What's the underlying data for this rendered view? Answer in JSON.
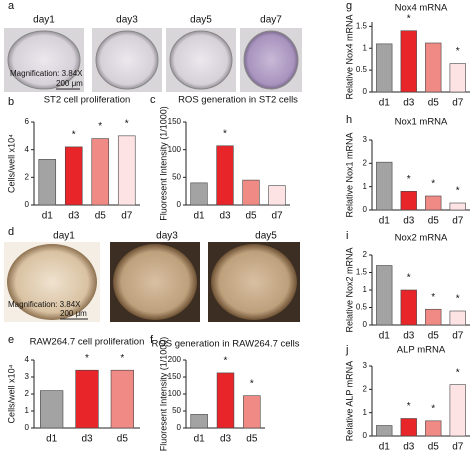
{
  "panel_labels": [
    "a",
    "b",
    "c",
    "d",
    "e",
    "f",
    "g",
    "h",
    "i",
    "j"
  ],
  "photos_a": {
    "labels": [
      "day1",
      "day3",
      "day5",
      "day7"
    ],
    "magnification": "Magnification: 3.84X",
    "scale": "200 μm"
  },
  "photos_d": {
    "labels": [
      "day1",
      "day3",
      "day5"
    ],
    "magnification": "Magnification: 3.84X",
    "scale": "200 μm"
  },
  "chart_data": [
    {
      "type": "bar",
      "title": "ST2 cell proliferation",
      "ylabel": "Cells/well x10⁴",
      "categories": [
        "d1",
        "d3",
        "d5",
        "d7"
      ],
      "values": [
        3.3,
        4.2,
        4.8,
        5.0
      ],
      "colors": [
        "#a3a3a3",
        "#e8262a",
        "#f08a84",
        "#fde3e3"
      ],
      "ylim": [
        0,
        6
      ],
      "yticks": [
        0,
        2,
        4,
        6
      ],
      "significance": [
        null,
        "*",
        "*",
        "*"
      ]
    },
    {
      "type": "bar",
      "title": "ROS generation in ST2 cells",
      "ylabel": "Fluoresent Intensity (1/1000)",
      "categories": [
        "d1",
        "d3",
        "d5",
        "d7"
      ],
      "values": [
        40,
        107,
        45,
        35
      ],
      "colors": [
        "#a3a3a3",
        "#e8262a",
        "#f08a84",
        "#fde3e3"
      ],
      "ylim": [
        0,
        150
      ],
      "yticks": [
        0,
        50,
        100,
        150
      ],
      "significance": [
        null,
        "*",
        null,
        null
      ]
    },
    {
      "type": "bar",
      "title": "RAW264.7 cell proliferation",
      "ylabel": "Cells/well x10⁴",
      "categories": [
        "d1",
        "d3",
        "d5"
      ],
      "values": [
        2.2,
        3.4,
        3.4
      ],
      "colors": [
        "#a3a3a3",
        "#e8262a",
        "#f08a84"
      ],
      "ylim": [
        0,
        4
      ],
      "yticks": [
        0,
        1,
        2,
        3,
        4
      ],
      "significance": [
        null,
        "*",
        "*"
      ]
    },
    {
      "type": "bar",
      "title": "ROS generation in RAW264.7 cells",
      "ylabel": "Fluoresent Intensity (1/1000)",
      "categories": [
        "d1",
        "d3",
        "d5"
      ],
      "values": [
        40,
        162,
        95
      ],
      "colors": [
        "#a3a3a3",
        "#e8262a",
        "#f08a84"
      ],
      "ylim": [
        0,
        200
      ],
      "yticks": [
        0,
        50,
        100,
        150,
        200
      ],
      "significance": [
        null,
        "*",
        "*"
      ]
    },
    {
      "type": "bar",
      "title": "Nox4 mRNA",
      "ylabel": "Relative Nox4 mRNA",
      "categories": [
        "d1",
        "d3",
        "d5",
        "d7"
      ],
      "values": [
        1.1,
        1.4,
        1.12,
        0.65
      ],
      "colors": [
        "#a3a3a3",
        "#e8262a",
        "#f08a84",
        "#fde3e3"
      ],
      "ylim": [
        0,
        1.6
      ],
      "yticks": [
        0,
        0.5,
        1,
        1.5
      ],
      "significance": [
        null,
        "*",
        null,
        "*"
      ]
    },
    {
      "type": "bar",
      "title": "Nox1 mRNA",
      "ylabel": "Relative Nox1 mRNA",
      "categories": [
        "d1",
        "d3",
        "d5",
        "d7"
      ],
      "values": [
        2.05,
        0.8,
        0.6,
        0.3
      ],
      "colors": [
        "#a3a3a3",
        "#e8262a",
        "#f08a84",
        "#fde3e3"
      ],
      "ylim": [
        0,
        3
      ],
      "yticks": [
        0,
        1,
        2,
        3
      ],
      "significance": [
        null,
        "*",
        "*",
        "*"
      ]
    },
    {
      "type": "bar",
      "title": "Nox2 mRNA",
      "ylabel": "Relative Nox2 mRNA",
      "categories": [
        "d1",
        "d3",
        "d5",
        "d7"
      ],
      "values": [
        1.7,
        1.0,
        0.45,
        0.4
      ],
      "colors": [
        "#a3a3a3",
        "#e8262a",
        "#f08a84",
        "#fde3e3"
      ],
      "ylim": [
        0,
        2
      ],
      "yticks": [
        0,
        0.5,
        1,
        1.5,
        2
      ],
      "significance": [
        null,
        "*",
        "*",
        "*"
      ]
    },
    {
      "type": "bar",
      "title": "ALP mRNA",
      "ylabel": "Relative ALP mRNA",
      "categories": [
        "d1",
        "d3",
        "d5",
        "d7"
      ],
      "values": [
        0.45,
        0.75,
        0.65,
        2.2
      ],
      "colors": [
        "#a3a3a3",
        "#e8262a",
        "#f08a84",
        "#fde3e3"
      ],
      "ylim": [
        0,
        3
      ],
      "yticks": [
        0,
        1,
        2,
        3
      ],
      "significance": [
        null,
        "*",
        "*",
        "*"
      ]
    }
  ]
}
